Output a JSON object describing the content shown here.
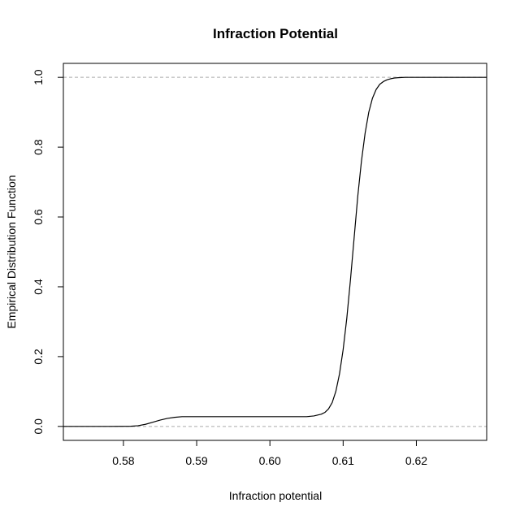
{
  "chart_data": {
    "type": "line",
    "title": "Infraction Potential",
    "xlabel": "Infraction potential",
    "ylabel": "Empirical Distribution Function",
    "xlim": [
      0.5718,
      0.6296
    ],
    "ylim": [
      -0.04,
      1.04
    ],
    "x_ticks": [
      0.58,
      0.59,
      0.6,
      0.61,
      0.62
    ],
    "x_tick_labels": [
      "0.58",
      "0.59",
      "0.60",
      "0.61",
      "0.62"
    ],
    "y_ticks": [
      0.0,
      0.2,
      0.4,
      0.6,
      0.8,
      1.0
    ],
    "y_tick_labels": [
      "0.0",
      "0.2",
      "0.4",
      "0.6",
      "0.8",
      "1.0"
    ],
    "reference_lines": [
      0,
      1
    ],
    "grid": false,
    "legend": "none",
    "series": [
      {
        "x": [
          0.5718,
          0.578,
          0.581,
          0.582,
          0.583,
          0.584,
          0.585,
          0.586,
          0.587,
          0.588,
          0.59,
          0.595,
          0.6,
          0.605,
          0.606,
          0.607,
          0.6075,
          0.608,
          0.6085,
          0.609,
          0.6095,
          0.61,
          0.6105,
          0.611,
          0.6115,
          0.612,
          0.6125,
          0.613,
          0.6135,
          0.614,
          0.6145,
          0.615,
          0.6155,
          0.616,
          0.6165,
          0.617,
          0.6175,
          0.618,
          0.6185,
          0.619,
          0.62,
          0.6296
        ],
        "y": [
          0.0,
          0.0,
          0.0005,
          0.002,
          0.006,
          0.012,
          0.018,
          0.023,
          0.026,
          0.028,
          0.028,
          0.028,
          0.028,
          0.028,
          0.03,
          0.035,
          0.04,
          0.05,
          0.068,
          0.1,
          0.15,
          0.22,
          0.31,
          0.42,
          0.54,
          0.66,
          0.76,
          0.84,
          0.9,
          0.94,
          0.965,
          0.98,
          0.988,
          0.993,
          0.996,
          0.998,
          0.999,
          0.9995,
          1.0,
          1.0,
          1.0,
          1.0
        ]
      }
    ]
  }
}
